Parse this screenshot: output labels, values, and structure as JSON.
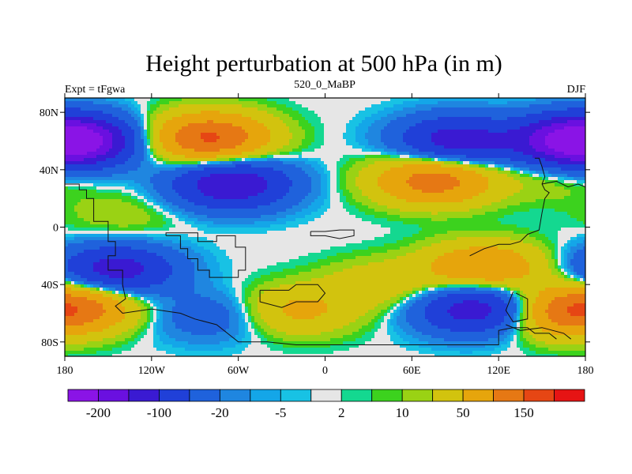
{
  "chart_data": {
    "type": "heatmap",
    "title": "Height perturbation at 500 hPa (in m)",
    "left_label": "Expt = tFgwa",
    "center_label": "520_0_MaBP",
    "right_label": "DJF",
    "x_ticks": [
      {
        "value": -180,
        "label": "180"
      },
      {
        "value": -120,
        "label": "120W"
      },
      {
        "value": -60,
        "label": "60W"
      },
      {
        "value": 0,
        "label": "0"
      },
      {
        "value": 60,
        "label": "60E"
      },
      {
        "value": 120,
        "label": "120E"
      },
      {
        "value": 180,
        "label": "180"
      }
    ],
    "y_ticks": [
      {
        "value": 80,
        "label": "80N"
      },
      {
        "value": 40,
        "label": "40N"
      },
      {
        "value": 0,
        "label": "0"
      },
      {
        "value": -40,
        "label": "40S"
      },
      {
        "value": -80,
        "label": "80S"
      }
    ],
    "xlim": [
      -180,
      180
    ],
    "ylim": [
      -90,
      90
    ],
    "contour_levels": [
      -200,
      -150,
      -100,
      -50,
      -20,
      -10,
      -5,
      -2,
      2,
      5,
      10,
      20,
      50,
      100,
      150,
      200
    ],
    "colorbar_labels": [
      {
        "level_index": 0,
        "label": "-200"
      },
      {
        "level_index": 2,
        "label": "-100"
      },
      {
        "level_index": 4,
        "label": "-20"
      },
      {
        "level_index": 6,
        "label": "-5"
      },
      {
        "level_index": 8,
        "label": "2"
      },
      {
        "level_index": 10,
        "label": "10"
      },
      {
        "level_index": 12,
        "label": "50"
      },
      {
        "level_index": 14,
        "label": "150"
      }
    ],
    "colors": [
      "#8a14e6",
      "#6a10e0",
      "#3a1ad2",
      "#2040d8",
      "#1f62dc",
      "#1f86e0",
      "#14a6e8",
      "#18c2e4",
      "#e6e6e6",
      "#14d890",
      "#3cd21e",
      "#9ad214",
      "#d2c30e",
      "#e6a50c",
      "#e67814",
      "#e64614",
      "#e61414"
    ],
    "field_centers": [
      {
        "lon": -170,
        "lat": 60,
        "value": -160
      },
      {
        "lon": 170,
        "lat": 60,
        "value": -160
      },
      {
        "lon": -80,
        "lat": 62,
        "value": 160
      },
      {
        "lon": 90,
        "lat": 60,
        "value": -130
      },
      {
        "lon": -65,
        "lat": 30,
        "value": -150
      },
      {
        "lon": 75,
        "lat": 33,
        "value": 130
      },
      {
        "lon": 155,
        "lat": 35,
        "value": 20
      },
      {
        "lon": -140,
        "lat": 8,
        "value": 18
      },
      {
        "lon": -145,
        "lat": -30,
        "value": -130
      },
      {
        "lon": 110,
        "lat": -28,
        "value": 100
      },
      {
        "lon": 40,
        "lat": -40,
        "value": 40
      },
      {
        "lon": -170,
        "lat": -55,
        "value": 110
      },
      {
        "lon": -20,
        "lat": -58,
        "value": 60
      },
      {
        "lon": -80,
        "lat": -62,
        "value": -40
      },
      {
        "lon": 105,
        "lat": -57,
        "value": -140
      },
      {
        "lon": 160,
        "lat": -60,
        "value": 90
      }
    ]
  }
}
